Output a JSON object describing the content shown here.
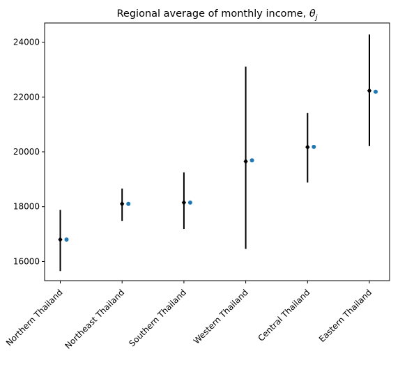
{
  "chart_data": {
    "type": "scatter",
    "title": "Regional average of monthly income, ",
    "title_symbol": "θ",
    "title_subscript": "j",
    "xlabel": "",
    "ylabel": "",
    "ylim": [
      15300,
      24700
    ],
    "yticks": [
      16000,
      18000,
      20000,
      22000,
      24000
    ],
    "grid": false,
    "categories": [
      "Northern Thailand",
      "Northeast Thailand",
      "Southern Thailand",
      "Western Thailand",
      "Central Thailand",
      "Eastern Thailand"
    ],
    "series": [
      {
        "kind": "posterior-mean-with-interval",
        "color": "#000000",
        "marker": "diamond",
        "values": [
          16800,
          18100,
          18150,
          19650,
          20170,
          22230
        ],
        "lower": [
          15650,
          17480,
          17180,
          16460,
          18880,
          20210
        ],
        "upper": [
          17880,
          18660,
          19250,
          23110,
          21420,
          24280
        ]
      },
      {
        "kind": "point",
        "color": "#1f77b4",
        "marker": "circle",
        "values": [
          16800,
          18100,
          18150,
          19690,
          20180,
          22190
        ]
      }
    ]
  }
}
